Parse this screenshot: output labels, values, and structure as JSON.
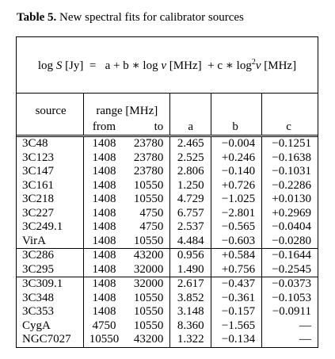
{
  "caption": {
    "label": "Table 5.",
    "text": " New spectral fits for calibrator sources"
  },
  "formula": {
    "lhs": "log ",
    "S": "S",
    "lhs_unit": " [Jy]  =   ",
    "term_a": "a + ",
    "term_b": "b ∗ log ",
    "nu1": "ν",
    "unit1": " [MHz]  + ",
    "term_c": "c ∗ log",
    "sq": "2",
    "nu2": "ν",
    "unit2": " [MHz]"
  },
  "headers": {
    "source": "source",
    "range": "range [MHz]",
    "from": "from",
    "to": "to",
    "a": "a",
    "b": "b",
    "c": "c"
  },
  "groups": [
    [
      {
        "source": "3C48",
        "from": "1408",
        "to": "23780",
        "a": "2.465",
        "b": "−0.004",
        "c": "−0.1251"
      },
      {
        "source": "3C123",
        "from": "1408",
        "to": "23780",
        "a": "2.525",
        "b": "+0.246",
        "c": "−0.1638"
      },
      {
        "source": "3C147",
        "from": "1408",
        "to": "23780",
        "a": "2.806",
        "b": "−0.140",
        "c": "−0.1031"
      },
      {
        "source": "3C161",
        "from": "1408",
        "to": "10550",
        "a": "1.250",
        "b": "+0.726",
        "c": "−0.2286"
      },
      {
        "source": "3C218",
        "from": "1408",
        "to": "10550",
        "a": "4.729",
        "b": "−1.025",
        "c": "+0.0130"
      },
      {
        "source": "3C227",
        "from": "1408",
        "to": "4750",
        "a": "6.757",
        "b": "−2.801",
        "c": "+0.2969"
      },
      {
        "source": "3C249.1",
        "from": "1408",
        "to": "4750",
        "a": "2.537",
        "b": "−0.565",
        "c": "−0.0404"
      },
      {
        "source": "VirA",
        "from": "1408",
        "to": "10550",
        "a": "4.484",
        "b": "−0.603",
        "c": "−0.0280"
      }
    ],
    [
      {
        "source": "3C286",
        "from": "1408",
        "to": "43200",
        "a": "0.956",
        "b": "+0.584",
        "c": "−0.1644"
      },
      {
        "source": "3C295",
        "from": "1408",
        "to": "32000",
        "a": "1.490",
        "b": "+0.756",
        "c": "−0.2545"
      }
    ],
    [
      {
        "source": "3C309.1",
        "from": "1408",
        "to": "32000",
        "a": "2.617",
        "b": "−0.437",
        "c": "−0.0373"
      },
      {
        "source": "3C348",
        "from": "1408",
        "to": "10550",
        "a": "3.852",
        "b": "−0.361",
        "c": "−0.1053"
      },
      {
        "source": "3C353",
        "from": "1408",
        "to": "10550",
        "a": "3.148",
        "b": "−0.157",
        "c": "−0.0911"
      },
      {
        "source": "CygA",
        "from": "4750",
        "to": "10550",
        "a": "8.360",
        "b": "−1.565",
        "c": "—"
      },
      {
        "source": "NGC7027",
        "from": "10550",
        "to": "43200",
        "a": "1.322",
        "b": "−0.134",
        "c": "—"
      }
    ]
  ]
}
